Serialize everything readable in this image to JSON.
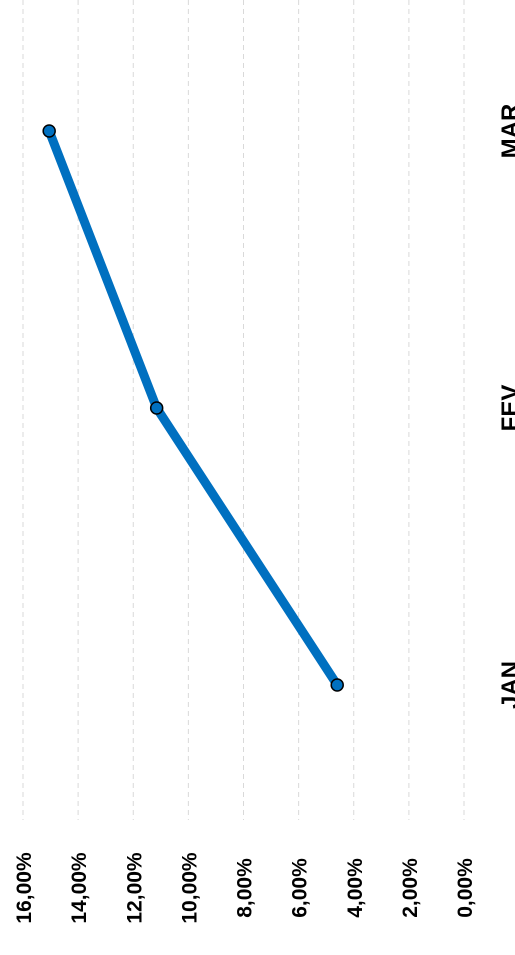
{
  "chart_data": {
    "type": "line",
    "orientation": "rotated 90° clockwise",
    "categories": [
      "JAN",
      "FEV",
      "MAR"
    ],
    "series": [
      {
        "values": [
          4.6,
          11.15,
          15.05
        ],
        "color": "#0070C0"
      }
    ],
    "y_ticks": [
      "0,00%",
      "2,00%",
      "4,00%",
      "6,00%",
      "8,00%",
      "10,00%",
      "12,00%",
      "14,00%",
      "16,00%"
    ],
    "ylim": [
      0,
      16
    ],
    "ytick_step": 2,
    "grid": true,
    "grid_color": "#D9D9D9",
    "line_color": "#0070C0",
    "marker_edge_color": "#000000"
  }
}
